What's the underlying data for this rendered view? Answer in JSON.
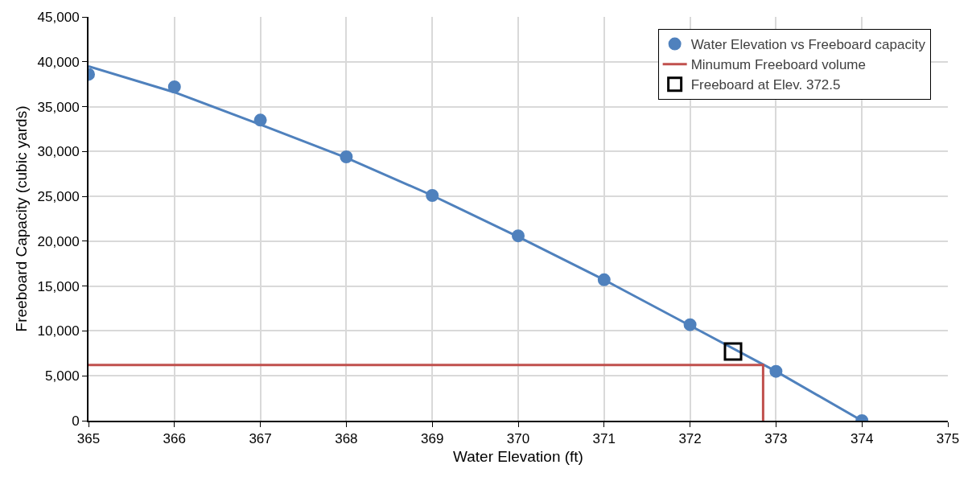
{
  "chart_data": {
    "type": "scatter",
    "xlabel": "Water Elevation (ft)",
    "ylabel": "Freeboard Capacity (cubic yards)",
    "xlim": [
      365,
      375
    ],
    "xticks": [
      365,
      366,
      367,
      368,
      369,
      370,
      371,
      372,
      373,
      374,
      375
    ],
    "ylim": [
      0,
      45000
    ],
    "yticks": [
      {
        "value": 0,
        "label": "0"
      },
      {
        "value": 5000,
        "label": "5,000"
      },
      {
        "value": 10000,
        "label": "10,000"
      },
      {
        "value": 15000,
        "label": "15,000"
      },
      {
        "value": 20000,
        "label": "20,000"
      },
      {
        "value": 25000,
        "label": "25,000"
      },
      {
        "value": 30000,
        "label": "30,000"
      },
      {
        "value": 35000,
        "label": "35,000"
      },
      {
        "value": 40000,
        "label": "40,000"
      },
      {
        "value": 45000,
        "label": "45,000"
      }
    ],
    "grid": true,
    "legend": "top right",
    "series": [
      {
        "type": "line",
        "color": "#4f81bd",
        "marker": "none",
        "x": [
          365,
          366,
          367,
          368,
          369,
          370,
          371,
          372,
          373,
          374
        ],
        "values": [
          39500,
          36600,
          33000,
          29300,
          25100,
          20500,
          15700,
          10600,
          5500,
          0
        ]
      },
      {
        "name": "Water Elevation vs Freeboard capacity",
        "marker": "circle",
        "color": "#4f81bd",
        "x": [
          365,
          366,
          367,
          368,
          369,
          370,
          371,
          372,
          373,
          374
        ],
        "values": [
          38600,
          37200,
          33500,
          29400,
          25100,
          20600,
          15700,
          10700,
          5500,
          0
        ]
      },
      {
        "name": "Minumum Freeboard volume",
        "type": "line",
        "marker": "none",
        "color": "#c0504d",
        "x": [
          365,
          372.85,
          372.85
        ],
        "values": [
          6200,
          6200,
          0
        ]
      },
      {
        "name": "Freeboard at Elev. 372.5",
        "marker": "square",
        "color": "#000000",
        "x": [
          372.5
        ],
        "values": [
          7700
        ]
      }
    ]
  }
}
